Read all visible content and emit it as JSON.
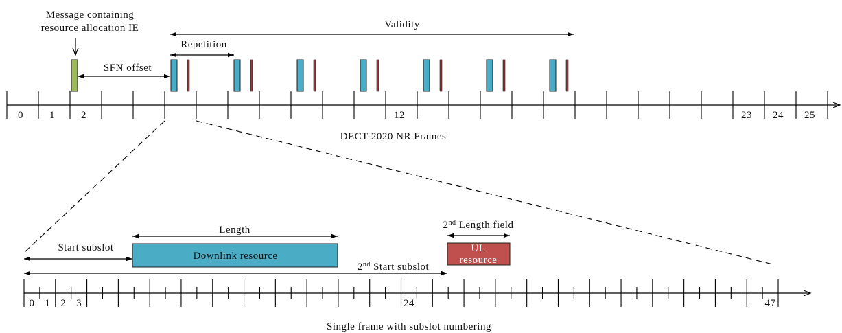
{
  "message_note": {
    "line1": "Message containing",
    "line2": "resource allocation IE"
  },
  "frames": {
    "validity_label": "Validity",
    "repetition_label": "Repetition",
    "sfn_offset_label": "SFN offset",
    "tick_labels": [
      "0",
      "1",
      "2",
      "12",
      "23",
      "24",
      "25"
    ],
    "axis_caption": "DECT-2020 NR Frames"
  },
  "subslots": {
    "length_label": "Length",
    "start_subslot_label": "Start subslot",
    "downlink_label": "Downlink resource",
    "second_length_label": {
      "base": "2",
      "sup": "nd",
      "rest": " Length field"
    },
    "ul_label": {
      "line1": "UL",
      "line2": "resource"
    },
    "second_start_label": {
      "base": "2",
      "sup": "nd",
      "rest": " Start subslot"
    },
    "tick_labels": [
      "0",
      "1",
      "2",
      "3",
      "24",
      "47"
    ],
    "axis_caption": "Single frame with subslot numbering"
  },
  "colors": {
    "message": "#9BBB59",
    "allocation": "#4BACC6",
    "allocation_marker": "#943634",
    "downlink": "#4BACC6",
    "uplink": "#C0504D"
  }
}
